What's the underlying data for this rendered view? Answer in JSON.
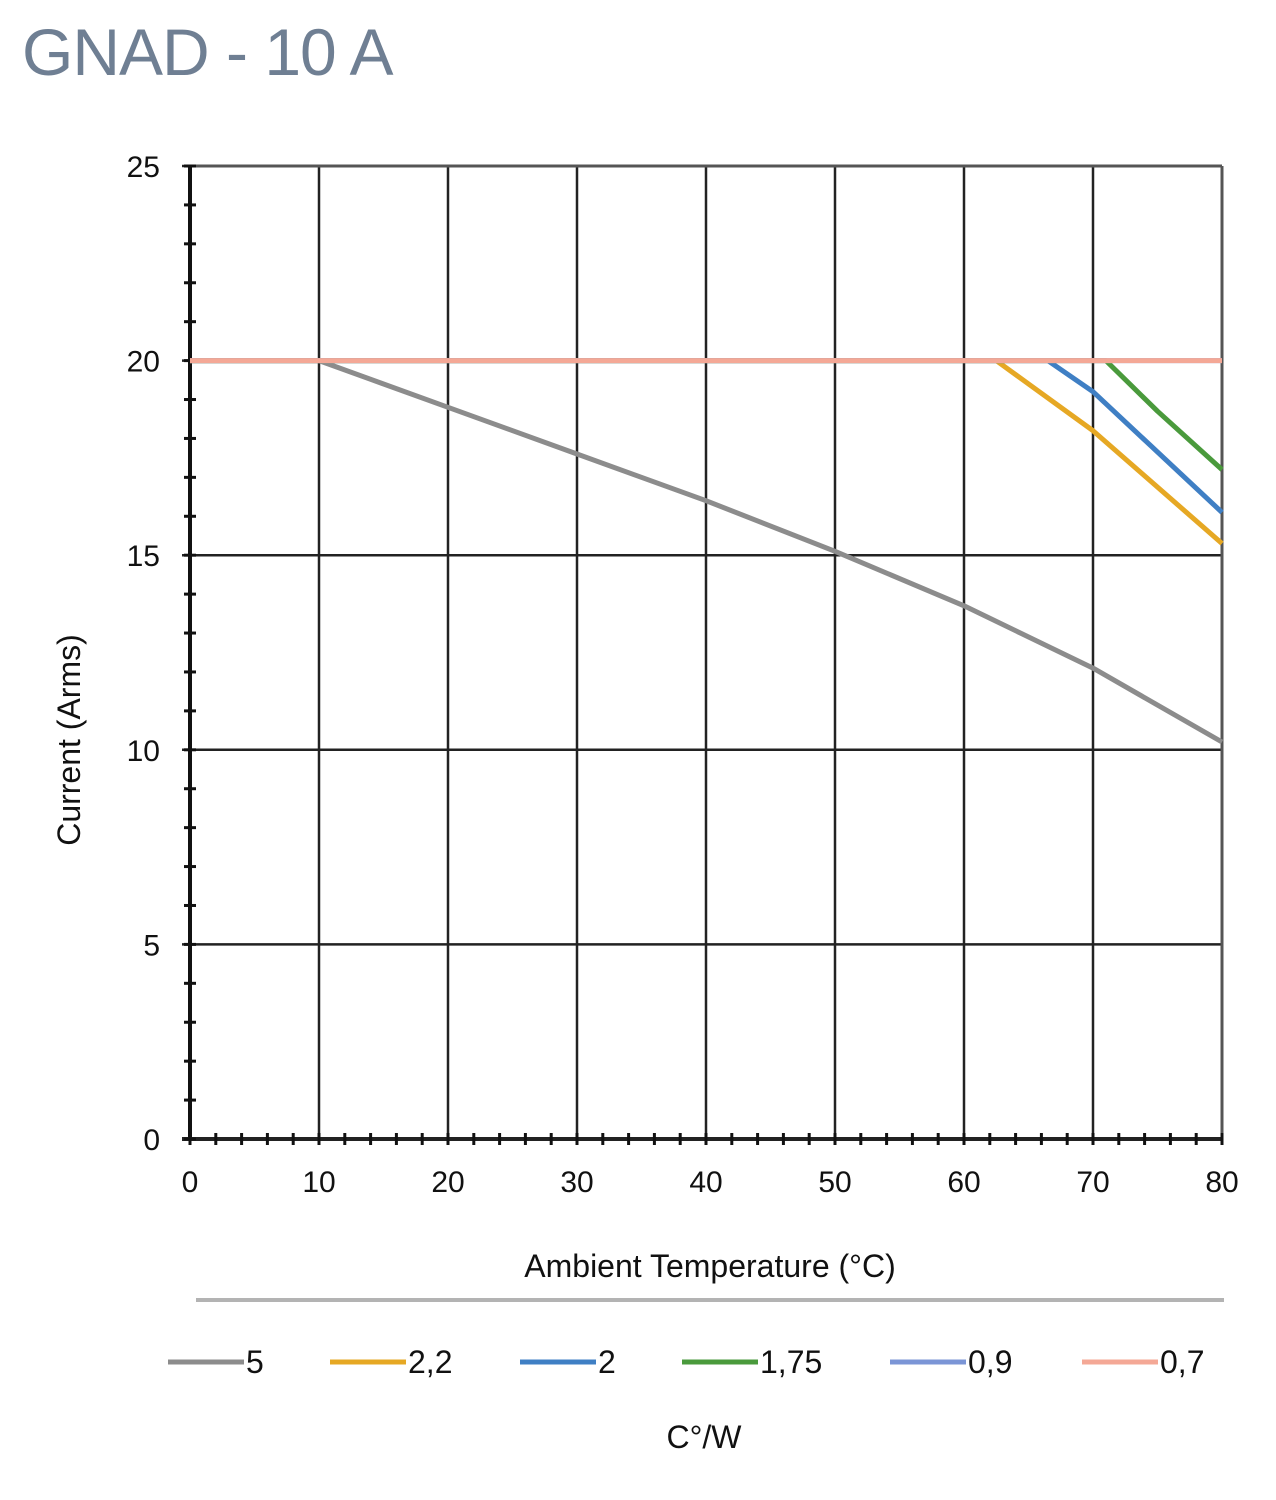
{
  "title": "GNAD - 10 A",
  "chart_data": {
    "type": "line",
    "title": "GNAD - 10 A",
    "xlabel": "Ambient Temperature (°C)",
    "ylabel": "Current (Arms)",
    "xlim": [
      0,
      80
    ],
    "ylim": [
      0,
      25
    ],
    "x_ticks": [
      0,
      10,
      20,
      30,
      40,
      50,
      60,
      70,
      80
    ],
    "y_ticks": [
      0,
      5,
      10,
      15,
      20,
      25
    ],
    "grid": true,
    "legend_position": "bottom",
    "legend_title": "C°/W",
    "series": [
      {
        "name": "5",
        "color": "#8c8c8c",
        "points": [
          [
            0,
            20
          ],
          [
            10,
            20
          ],
          [
            20,
            18.8
          ],
          [
            30,
            17.6
          ],
          [
            40,
            16.4
          ],
          [
            50,
            15.1
          ],
          [
            60,
            13.7
          ],
          [
            70,
            12.1
          ],
          [
            80,
            10.2
          ]
        ]
      },
      {
        "name": "2,2",
        "color": "#e6a824",
        "points": [
          [
            0,
            20
          ],
          [
            62.5,
            20
          ],
          [
            70,
            18.2
          ],
          [
            80,
            15.3
          ]
        ]
      },
      {
        "name": "2",
        "color": "#3f7fc4",
        "points": [
          [
            0,
            20
          ],
          [
            66.5,
            20
          ],
          [
            70,
            19.2
          ],
          [
            80,
            16.1
          ]
        ]
      },
      {
        "name": "1,75",
        "color": "#4a9a3c",
        "points": [
          [
            0,
            20
          ],
          [
            71,
            20
          ],
          [
            75,
            18.7
          ],
          [
            80,
            17.2
          ]
        ]
      },
      {
        "name": "0,9",
        "color": "#7b95d6",
        "points": [
          [
            0,
            20
          ],
          [
            80,
            20
          ]
        ]
      },
      {
        "name": "0,7",
        "color": "#f4a896",
        "points": [
          [
            0,
            20
          ],
          [
            80,
            20
          ]
        ]
      }
    ]
  }
}
